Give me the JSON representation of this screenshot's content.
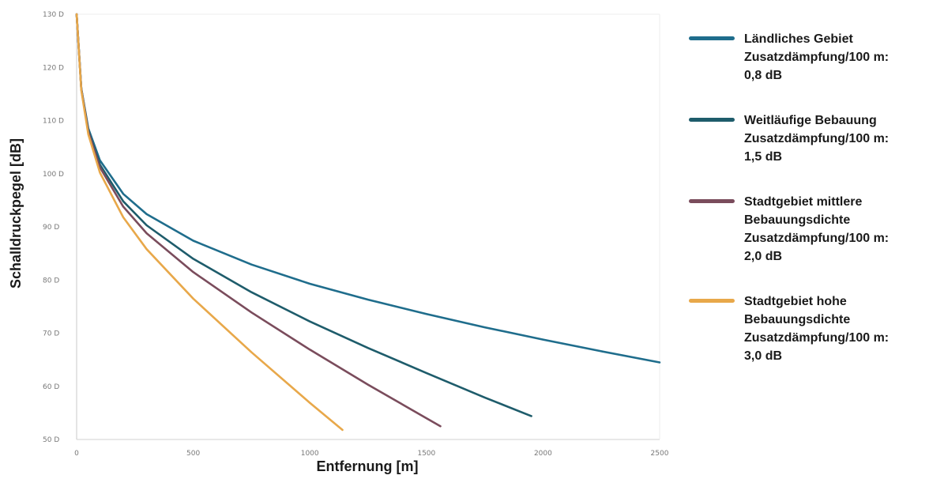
{
  "chart_data": {
    "type": "line",
    "xlabel": "Entfernung [m]",
    "ylabel": "Schalldruckpegel [dB]",
    "xlim": [
      0,
      2500
    ],
    "ylim": [
      50,
      130
    ],
    "x_ticks": [
      "0",
      "500",
      "1000",
      "1500",
      "2000",
      "2500"
    ],
    "y_ticks": [
      "50 D",
      "60 D",
      "70 D",
      "80 D",
      "90 D",
      "100 D",
      "110 D",
      "120 D",
      "130 D"
    ],
    "grid": false,
    "legend_position": "right",
    "series": [
      {
        "name": "Ländliches Gebiet Zusatzdämpfung/100 m: 0,8 dB",
        "legend_lines": [
          "Ländliches Gebiet",
          "Zusatzdämpfung/100 m:",
          "0,8 dB"
        ],
        "color": "#1f6d8c",
        "x": [
          0,
          20,
          50,
          100,
          200,
          300,
          500,
          750,
          1000,
          1250,
          1500,
          1750,
          2000,
          2250,
          2500
        ],
        "y": [
          130,
          116,
          108.5,
          102.5,
          96.2,
          92.4,
          87.4,
          82.9,
          79.3,
          76.3,
          73.6,
          71.1,
          68.8,
          66.6,
          64.5
        ]
      },
      {
        "name": "Weitläufige Bebauung Zusatzdämpfung/100 m: 1,5 dB",
        "legend_lines": [
          "Weitläufige Bebauung",
          "Zusatzdämpfung/100 m:",
          "1,5 dB"
        ],
        "color": "#1e5c6b",
        "x": [
          0,
          20,
          50,
          100,
          200,
          300,
          500,
          750,
          1000,
          1250,
          1500,
          1750,
          1950
        ],
        "y": [
          130,
          116,
          108.1,
          101.7,
          94.8,
          90.3,
          84.0,
          77.7,
          72.2,
          67.2,
          62.5,
          57.9,
          54.4
        ]
      },
      {
        "name": "Stadtgebiet mittlere Bebauungsdichte Zusatzdämpfung/100 m: 2,0 dB",
        "legend_lines": [
          "Stadtgebiet mittlere",
          "Bebauungsdichte",
          "Zusatzdämpfung/100 m:",
          "2,0 dB"
        ],
        "color": "#7a4c5c",
        "x": [
          0,
          20,
          50,
          100,
          200,
          300,
          500,
          750,
          1000,
          1250,
          1500,
          1560
        ],
        "y": [
          130,
          115.9,
          107.9,
          101.2,
          93.8,
          88.8,
          81.5,
          73.9,
          66.9,
          60.3,
          54.0,
          52.5
        ]
      },
      {
        "name": "Stadtgebiet hohe Bebauungsdichte Zusatzdämpfung/100 m: 3,0 dB",
        "legend_lines": [
          "Stadtgebiet hohe",
          "Bebauungsdichte",
          "Zusatzdämpfung/100 m:",
          "3,0 dB"
        ],
        "color": "#e8a84a",
        "x": [
          0,
          20,
          50,
          100,
          200,
          300,
          500,
          750,
          1000,
          1140
        ],
        "y": [
          130,
          115.7,
          107.4,
          100.2,
          91.8,
          85.8,
          76.5,
          66.4,
          56.9,
          51.8
        ]
      }
    ]
  }
}
